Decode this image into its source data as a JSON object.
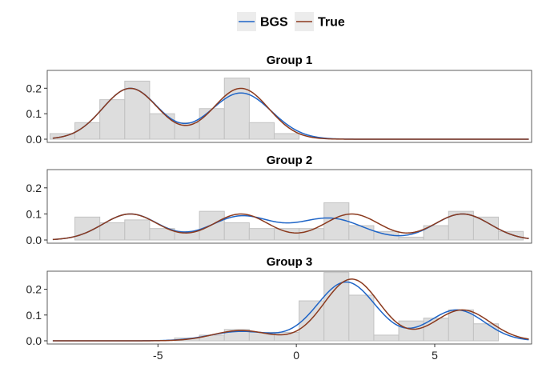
{
  "chart_data": {
    "type": "histogram-density",
    "legend": {
      "placement": "top",
      "entries": [
        {
          "name": "BGS",
          "color": "#1f65c7"
        },
        {
          "name": "True",
          "color": "#8b3a1e"
        }
      ]
    },
    "xlim": [
      -9,
      8.5
    ],
    "ylim": [
      0,
      0.27
    ],
    "x_ticks": [
      -5,
      0,
      5
    ],
    "y_ticks": [
      0.0,
      0.1,
      0.2
    ],
    "y_tick_labels": [
      "0.0",
      "0.1",
      "0.2"
    ],
    "bin_width": 0.9,
    "bar_fill": "#dddddd",
    "bar_stroke": "#c2c2c2",
    "panels": [
      {
        "title": "Group 1",
        "bins": [
          {
            "x0": -8.9,
            "x1": -8.0,
            "y": 0.022
          },
          {
            "x0": -8.0,
            "x1": -7.1,
            "y": 0.065
          },
          {
            "x0": -7.1,
            "x1": -6.2,
            "y": 0.155
          },
          {
            "x0": -6.2,
            "x1": -5.3,
            "y": 0.228
          },
          {
            "x0": -5.3,
            "x1": -4.4,
            "y": 0.1
          },
          {
            "x0": -4.4,
            "x1": -3.5,
            "y": 0.065
          },
          {
            "x0": -3.5,
            "x1": -2.6,
            "y": 0.12
          },
          {
            "x0": -2.6,
            "x1": -1.7,
            "y": 0.24
          },
          {
            "x0": -1.7,
            "x1": -0.8,
            "y": 0.065
          },
          {
            "x0": -0.8,
            "x1": 0.1,
            "y": 0.022
          }
        ],
        "series": [
          {
            "name": "BGS",
            "components": [
              {
                "w": 0.5,
                "mu": -6.0,
                "sd": 1.0
              },
              {
                "w": 0.5,
                "mu": -2.0,
                "sd": 1.1
              }
            ]
          },
          {
            "name": "True",
            "components": [
              {
                "w": 0.5,
                "mu": -6.0,
                "sd": 1.0
              },
              {
                "w": 0.5,
                "mu": -2.0,
                "sd": 1.0
              }
            ]
          }
        ]
      },
      {
        "title": "Group 2",
        "bins": [
          {
            "x0": -8.0,
            "x1": -7.1,
            "y": 0.088
          },
          {
            "x0": -7.1,
            "x1": -6.2,
            "y": 0.066
          },
          {
            "x0": -6.2,
            "x1": -5.3,
            "y": 0.077
          },
          {
            "x0": -5.3,
            "x1": -4.4,
            "y": 0.044
          },
          {
            "x0": -4.4,
            "x1": -3.5,
            "y": 0.033
          },
          {
            "x0": -3.5,
            "x1": -2.6,
            "y": 0.11
          },
          {
            "x0": -2.6,
            "x1": -1.7,
            "y": 0.066
          },
          {
            "x0": -1.7,
            "x1": -0.8,
            "y": 0.044
          },
          {
            "x0": -0.8,
            "x1": 0.1,
            "y": 0.044
          },
          {
            "x0": 0.1,
            "x1": 1.0,
            "y": 0.044
          },
          {
            "x0": 1.0,
            "x1": 1.9,
            "y": 0.143
          },
          {
            "x0": 1.9,
            "x1": 2.8,
            "y": 0.055
          },
          {
            "x0": 2.8,
            "x1": 3.7,
            "y": 0.033
          },
          {
            "x0": 3.7,
            "x1": 4.6,
            "y": 0.011
          },
          {
            "x0": 4.6,
            "x1": 5.5,
            "y": 0.055
          },
          {
            "x0": 5.5,
            "x1": 6.4,
            "y": 0.11
          },
          {
            "x0": 6.4,
            "x1": 7.3,
            "y": 0.088
          },
          {
            "x0": 7.3,
            "x1": 8.2,
            "y": 0.033
          }
        ],
        "series": [
          {
            "name": "BGS",
            "components": [
              {
                "w": 0.25,
                "mu": -6.0,
                "sd": 1.0
              },
              {
                "w": 0.25,
                "mu": -2.0,
                "sd": 1.1
              },
              {
                "w": 0.25,
                "mu": 1.2,
                "sd": 1.2
              },
              {
                "w": 0.25,
                "mu": 6.0,
                "sd": 1.0
              }
            ]
          },
          {
            "name": "True",
            "components": [
              {
                "w": 0.25,
                "mu": -6.0,
                "sd": 1.0
              },
              {
                "w": 0.25,
                "mu": -2.0,
                "sd": 1.0
              },
              {
                "w": 0.25,
                "mu": 2.0,
                "sd": 1.0
              },
              {
                "w": 0.25,
                "mu": 6.0,
                "sd": 1.0
              }
            ]
          }
        ]
      },
      {
        "title": "Group 3",
        "bins": [
          {
            "x0": -4.4,
            "x1": -3.5,
            "y": 0.011
          },
          {
            "x0": -3.5,
            "x1": -2.6,
            "y": 0.022
          },
          {
            "x0": -2.6,
            "x1": -1.7,
            "y": 0.044
          },
          {
            "x0": -1.7,
            "x1": -0.8,
            "y": 0.033
          },
          {
            "x0": -0.8,
            "x1": 0.1,
            "y": 0.033
          },
          {
            "x0": 0.1,
            "x1": 1.0,
            "y": 0.155
          },
          {
            "x0": 1.0,
            "x1": 1.9,
            "y": 0.265
          },
          {
            "x0": 1.9,
            "x1": 2.8,
            "y": 0.177
          },
          {
            "x0": 2.8,
            "x1": 3.7,
            "y": 0.022
          },
          {
            "x0": 3.7,
            "x1": 4.6,
            "y": 0.077
          },
          {
            "x0": 4.6,
            "x1": 5.5,
            "y": 0.088
          },
          {
            "x0": 5.5,
            "x1": 6.4,
            "y": 0.12
          },
          {
            "x0": 6.4,
            "x1": 7.3,
            "y": 0.066
          }
        ],
        "series": [
          {
            "name": "BGS",
            "components": [
              {
                "w": 0.1,
                "mu": -2.0,
                "sd": 1.1
              },
              {
                "w": 0.6,
                "mu": 1.8,
                "sd": 1.05
              },
              {
                "w": 0.3,
                "mu": 5.8,
                "sd": 1.0
              }
            ]
          },
          {
            "name": "True",
            "components": [
              {
                "w": 0.1,
                "mu": -2.0,
                "sd": 1.0
              },
              {
                "w": 0.6,
                "mu": 2.0,
                "sd": 1.0
              },
              {
                "w": 0.3,
                "mu": 6.0,
                "sd": 1.0
              }
            ]
          }
        ]
      }
    ]
  }
}
